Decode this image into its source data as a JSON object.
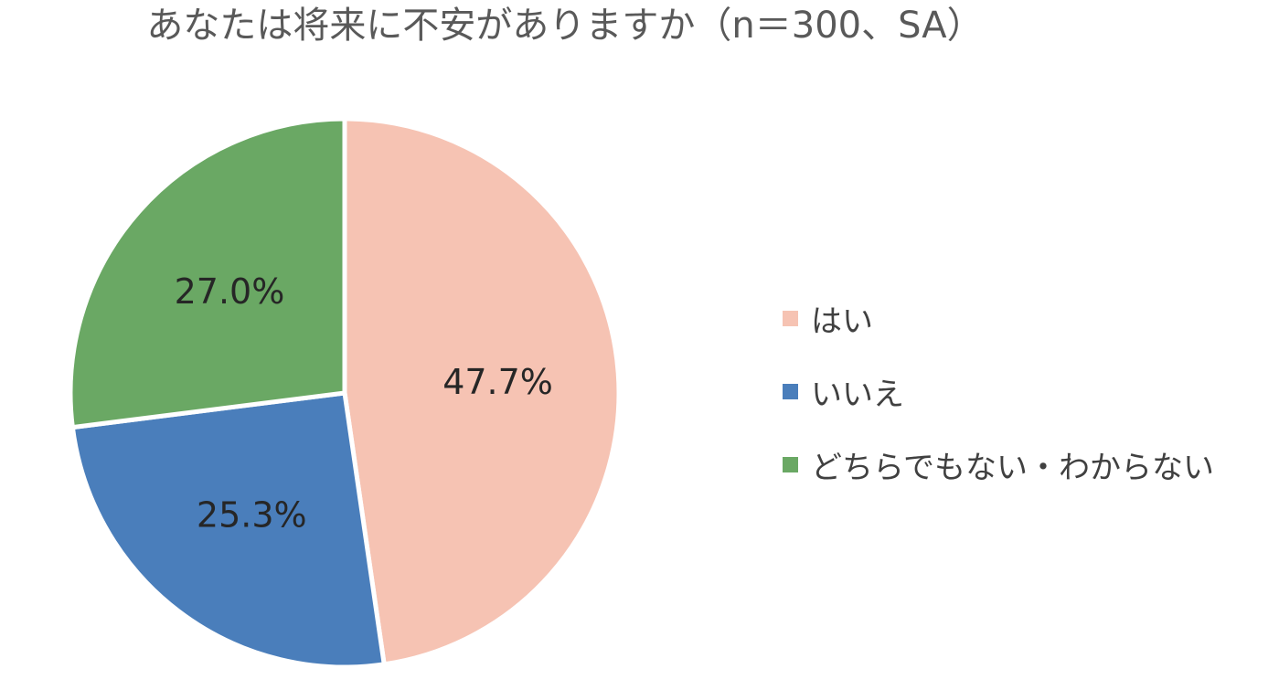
{
  "chart_data": {
    "type": "pie",
    "title": "あなたは将来に不安がありますか（n＝300、SA）",
    "slices": [
      {
        "label": "はい",
        "value": 47.7,
        "display": "47.7%",
        "color": "#F6C3B3"
      },
      {
        "label": "いいえ",
        "value": 25.3,
        "display": "25.3%",
        "color": "#4A7EBB"
      },
      {
        "label": "どちらでもない・わからない",
        "value": 27.0,
        "display": "27.0%",
        "color": "#6AA864"
      }
    ],
    "start_angle": "12 o'clock",
    "direction": "clockwise",
    "legend_position": "right"
  }
}
